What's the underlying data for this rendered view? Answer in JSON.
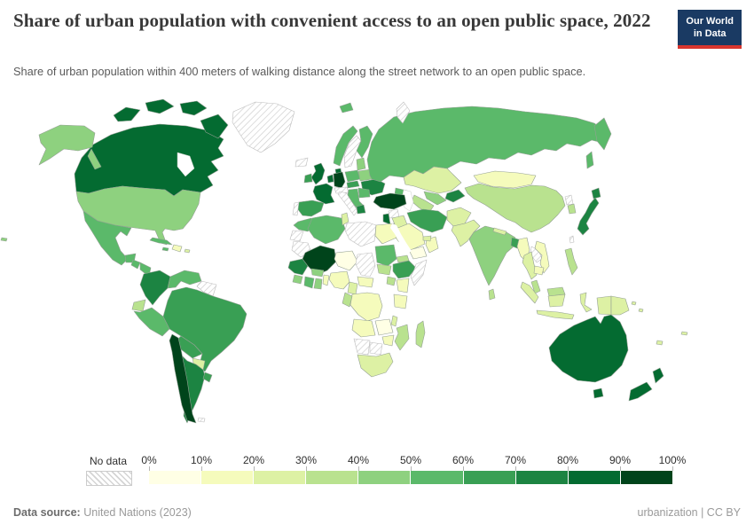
{
  "header": {
    "title": "Share of urban population with convenient access to an open public space, 2022",
    "subtitle": "Share of urban population within 400 meters of walking distance along the street network to an open public space.",
    "logo": {
      "line1": "Our World",
      "line2": "in Data"
    }
  },
  "colors": {
    "logo_navy": "#1a3a63",
    "logo_red": "#d8352e",
    "border": "#94a094",
    "nodata_border": "#bdbdbd"
  },
  "legend": {
    "no_data_label": "No data",
    "ticks": [
      "0%",
      "10%",
      "20%",
      "30%",
      "40%",
      "50%",
      "60%",
      "70%",
      "80%",
      "90%",
      "100%"
    ],
    "bin_colors": [
      "#ffffe5",
      "#f5fbbc",
      "#ddf1a4",
      "#b9e28f",
      "#8ed17f",
      "#5bb96a",
      "#399f54",
      "#1c8442",
      "#046b31",
      "#00441b"
    ],
    "bin_labels": [
      "0-10%",
      "10-20%",
      "20-30%",
      "30-40%",
      "40-50%",
      "50-60%",
      "60-70%",
      "70-80%",
      "80-90%",
      "90-100%"
    ]
  },
  "footer": {
    "source_label": "Data source:",
    "source_value": "United Nations (2023)",
    "right_text": "urbanization | CC BY"
  },
  "chart_data": {
    "type": "choropleth",
    "title": "Share of urban population with convenient access to an open public space, 2022",
    "unit": "%",
    "legend_position": "bottom",
    "note": "bin index 0 = 0-10% ... 9 = 90-100%, nd = No data",
    "countries": {
      "canada": 8,
      "usa": 4,
      "greenland": "nd",
      "mexico": 5,
      "guatemala": 5,
      "honduras-nicaragua": 5,
      "costa-rica": 3,
      "panama": 6,
      "cuba": 5,
      "jamaica": 5,
      "hispaniola": 1,
      "puerto-rico": 2,
      "hawaii": 4,
      "colombia": 7,
      "venezuela": 5,
      "guyanas": "nd",
      "ecuador": 3,
      "peru": 5,
      "brazil": 6,
      "bolivia": 6,
      "paraguay": 2,
      "argentina": 7,
      "uruguay": 6,
      "chile": 9,
      "falkland-is": "nd",
      "iceland": "nd",
      "uk": 8,
      "ireland": 6,
      "norway": 5,
      "sweden": "nd",
      "finland": 5,
      "denmark": 8,
      "germany": 9,
      "benelux": 8,
      "france": 8,
      "spain": 6,
      "portugal": "nd",
      "italy": "nd",
      "switzerland-austria": "nd",
      "poland": 5,
      "czech-slovakia": 6,
      "baltics": 4,
      "belarus": 4,
      "ukraine": 7,
      "romania": 5,
      "balkans": 5,
      "greece": 7,
      "russia": 5,
      "svalbard": 5,
      "novaya-zemlya": "nd",
      "kazakhstan": 2,
      "uzbekistan": 4,
      "turkmenistan": 3,
      "kyrgyzstan-tajikistan": 7,
      "caucasus": 5,
      "turkey": 9,
      "syria": "nd",
      "israel-jordan": 8,
      "iraq": 2,
      "saudi-arabia": 1,
      "yemen": 0,
      "oman": 1,
      "uae": 2,
      "iran": 6,
      "afghanistan": 2,
      "pakistan": 2,
      "india": 4,
      "nepal": 2,
      "bangladesh": 6,
      "sri-lanka": 3,
      "myanmar": 1,
      "thailand": 2,
      "laos": "nd",
      "vietnam": 1,
      "cambodia": 1,
      "malaysia": 3,
      "indonesia": 2,
      "philippines": 3,
      "papua-new-guinea": 2,
      "solomon-is": 2,
      "fiji": 2,
      "new-caledonia": 2,
      "china": 3,
      "mongolia": 1,
      "north-korea": "nd",
      "south-korea": 3,
      "japan": 7,
      "taiwan": "nd",
      "australia": 8,
      "new-zealand": 8,
      "morocco": 5,
      "western-sahara": "nd",
      "mauritania": "nd",
      "algeria": 5,
      "tunisia": 2,
      "libya": "nd",
      "egypt": 1,
      "mali": 9,
      "niger": 0,
      "chad": "nd",
      "senegal-guinea": 7,
      "sierra-leone-liberia": 4,
      "cote-divoire": 5,
      "ghana": 4,
      "burkina-faso": 4,
      "togo-benin": 1,
      "nigeria": 1,
      "cameroon": 2,
      "central-african-republic": 1,
      "sudan": 5,
      "south-sudan": 3,
      "eritrea": 3,
      "ethiopia": 6,
      "somalia": "nd",
      "kenya": 1,
      "uganda": 3,
      "dr-congo": 1,
      "gabon-congo": 3,
      "tanzania": 1,
      "angola": 1,
      "zambia": 0,
      "malawi": 2,
      "mozambique": 3,
      "zimbabwe": 1,
      "madagascar": 3,
      "namibia": "nd",
      "botswana": "nd",
      "south-africa": 2
    }
  }
}
